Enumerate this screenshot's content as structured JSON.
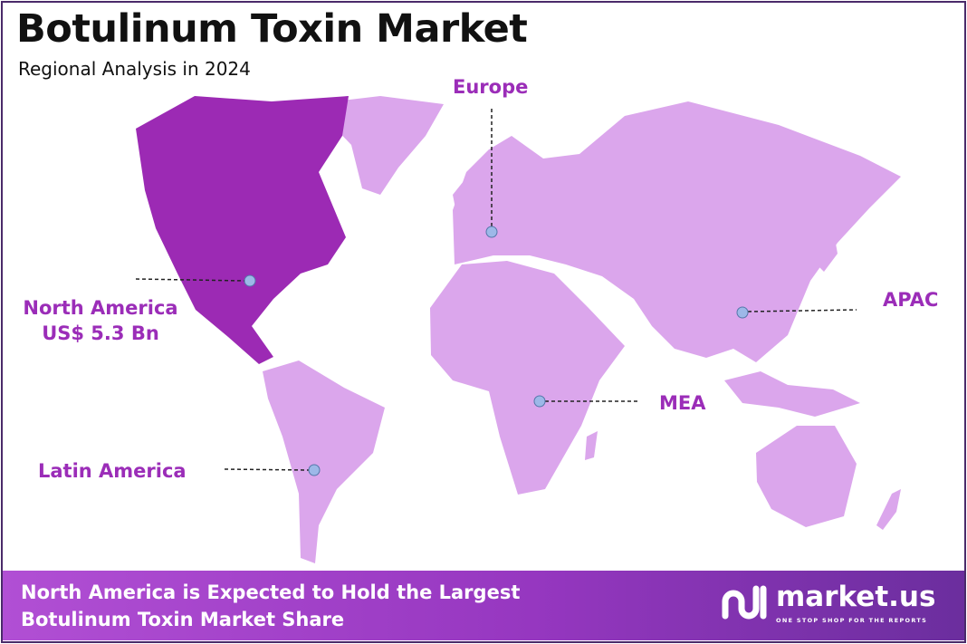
{
  "header": {
    "title": "Botulinum Toxin Market",
    "subtitle": "Regional Analysis in 2024"
  },
  "colors": {
    "highlight_region": "#9c2ab4",
    "other_regions": "#dba6ec",
    "label": "#9b2db8",
    "marker": "#9db8e8",
    "footer_start": "#b14fd4",
    "footer_end": "#6b2e9e"
  },
  "regions": {
    "north_america": {
      "name": "North America",
      "value": "US$ 5.3 Bn",
      "highlighted": true
    },
    "europe": {
      "name": "Europe"
    },
    "apac": {
      "name": "APAC"
    },
    "mea": {
      "name": "MEA"
    },
    "latin_america": {
      "name": "Latin America"
    }
  },
  "footer": {
    "line1": "North America is Expected to Hold the Largest",
    "line2": "Botulinum Toxin Market Share"
  },
  "logo": {
    "name": "market.us",
    "tagline": "ONE STOP SHOP FOR THE REPORTS"
  }
}
